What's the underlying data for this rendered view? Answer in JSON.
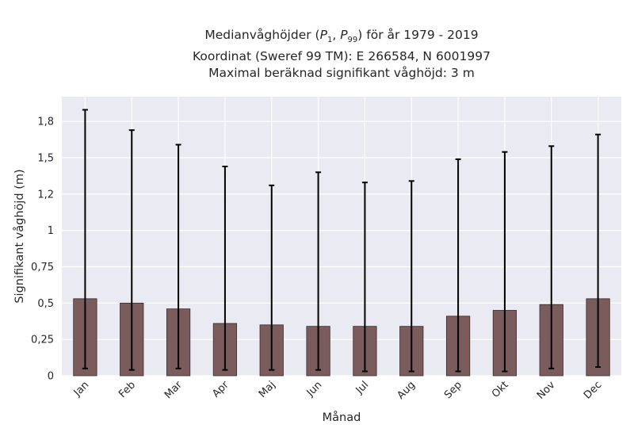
{
  "chart_data": {
    "type": "bar",
    "title_lines": [
      "Medianvåghöjder (P1, P99) för år 1979 - 2019",
      "Koordinat (Sweref 99 TM): E 266584, N 6001997",
      "Maximal beräknad signifikant våghöjd: 3 m"
    ],
    "xlabel": "Månad",
    "ylabel": "Signifikant våghöjd (m)",
    "categories": [
      "Jan",
      "Feb",
      "Mar",
      "Apr",
      "Maj",
      "Jun",
      "Jul",
      "Aug",
      "Sep",
      "Okt",
      "Nov",
      "Dec"
    ],
    "values": [
      0.53,
      0.5,
      0.46,
      0.36,
      0.35,
      0.34,
      0.34,
      0.34,
      0.41,
      0.45,
      0.49,
      0.53
    ],
    "error_low": [
      0.05,
      0.04,
      0.05,
      0.04,
      0.04,
      0.04,
      0.03,
      0.03,
      0.03,
      0.03,
      0.05,
      0.06
    ],
    "error_high": [
      1.83,
      1.69,
      1.59,
      1.44,
      1.31,
      1.4,
      1.33,
      1.34,
      1.49,
      1.54,
      1.58,
      1.66
    ],
    "yticks": [
      0,
      0.25,
      0.5,
      0.75,
      1,
      1.25,
      1.5,
      1.75
    ],
    "ytick_labels": [
      "0",
      "0,25",
      "0,5",
      "0,75",
      "1",
      "1,2",
      "1,5",
      "1,8"
    ],
    "ylim": [
      0,
      1.92
    ],
    "grid": true,
    "colors": {
      "bar": "#7b5c5c",
      "bar_edge": "#3a2a2a",
      "error": "#000000",
      "background": "#eaeaf2",
      "grid": "#ffffff"
    }
  }
}
